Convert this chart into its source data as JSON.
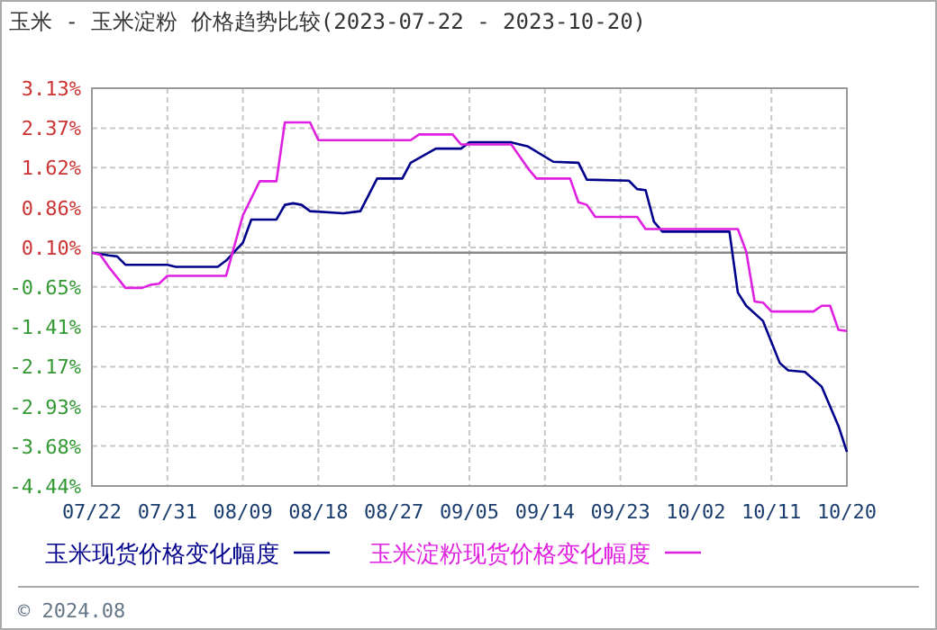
{
  "chart_data": {
    "type": "line",
    "title": "玉米 - 玉米淀粉 价格趋势比较(2023-07-22 - 2023-10-20)",
    "xlim": [
      "2023-07-22",
      "2023-10-20"
    ],
    "xticks": [
      {
        "value": "2023-07-22",
        "label": "07/22"
      },
      {
        "value": "2023-07-31",
        "label": "07/31"
      },
      {
        "value": "2023-08-09",
        "label": "08/09"
      },
      {
        "value": "2023-08-18",
        "label": "08/18"
      },
      {
        "value": "2023-08-27",
        "label": "08/27"
      },
      {
        "value": "2023-09-05",
        "label": "09/05"
      },
      {
        "value": "2023-09-14",
        "label": "09/14"
      },
      {
        "value": "2023-09-23",
        "label": "09/23"
      },
      {
        "value": "2023-10-02",
        "label": "10/02"
      },
      {
        "value": "2023-10-11",
        "label": "10/11"
      },
      {
        "value": "2023-10-20",
        "label": "10/20"
      }
    ],
    "ylim": [
      -4.44,
      3.13
    ],
    "yticks": [
      {
        "value": 3.13,
        "label": "3.13%"
      },
      {
        "value": 2.37,
        "label": "2.37%"
      },
      {
        "value": 1.62,
        "label": "1.62%"
      },
      {
        "value": 0.86,
        "label": "0.86%"
      },
      {
        "value": 0.1,
        "label": "0.10%"
      },
      {
        "value": -0.65,
        "label": "-0.65%"
      },
      {
        "value": -1.41,
        "label": "-1.41%"
      },
      {
        "value": -2.17,
        "label": "-2.17%"
      },
      {
        "value": -2.93,
        "label": "-2.93%"
      },
      {
        "value": -3.68,
        "label": "-3.68%"
      },
      {
        "value": -4.44,
        "label": "-4.44%"
      }
    ],
    "grid": true,
    "legend": "bottom",
    "ref_lines": [
      {
        "axis": "y",
        "value": 0,
        "color": "#888888"
      }
    ],
    "annotations": [
      "© 2024.08"
    ],
    "series": [
      {
        "name": "玉米现货价格变化幅度",
        "color": "#00008b",
        "x": [
          "2023-07-22",
          "2023-07-24",
          "2023-07-25",
          "2023-07-26",
          "2023-07-31",
          "2023-08-01",
          "2023-08-06",
          "2023-08-07",
          "2023-08-09",
          "2023-08-10",
          "2023-08-13",
          "2023-08-14",
          "2023-08-15",
          "2023-08-16",
          "2023-08-17",
          "2023-08-21",
          "2023-08-23",
          "2023-08-25",
          "2023-08-28",
          "2023-08-29",
          "2023-09-01",
          "2023-09-04",
          "2023-09-05",
          "2023-09-10",
          "2023-09-12",
          "2023-09-15",
          "2023-09-18",
          "2023-09-19",
          "2023-09-24",
          "2023-09-25",
          "2023-09-26",
          "2023-09-27",
          "2023-09-28",
          "2023-10-06",
          "2023-10-07",
          "2023-10-08",
          "2023-10-10",
          "2023-10-12",
          "2023-10-13",
          "2023-10-15",
          "2023-10-17",
          "2023-10-19",
          "2023-10-20"
        ],
        "values": [
          0,
          -0.05,
          -0.07,
          -0.23,
          -0.23,
          -0.27,
          -0.27,
          -0.15,
          0.19,
          0.63,
          0.63,
          0.91,
          0.94,
          0.91,
          0.79,
          0.75,
          0.79,
          1.41,
          1.41,
          1.71,
          1.98,
          1.98,
          2.1,
          2.1,
          2.02,
          1.73,
          1.71,
          1.39,
          1.37,
          1.21,
          1.19,
          0.59,
          0.4,
          0.4,
          -0.76,
          -1.01,
          -1.3,
          -2.1,
          -2.24,
          -2.27,
          -2.55,
          -3.3,
          -3.79
        ]
      },
      {
        "name": "玉米淀粉现货价格变化幅度",
        "color": "#e020e0",
        "x": [
          "2023-07-22",
          "2023-07-23",
          "2023-07-24",
          "2023-07-26",
          "2023-07-28",
          "2023-07-29",
          "2023-07-30",
          "2023-07-31",
          "2023-08-07",
          "2023-08-08",
          "2023-08-09",
          "2023-08-11",
          "2023-08-13",
          "2023-08-14",
          "2023-08-17",
          "2023-08-18",
          "2023-08-29",
          "2023-08-30",
          "2023-09-03",
          "2023-09-04",
          "2023-09-10",
          "2023-09-12",
          "2023-09-13",
          "2023-09-17",
          "2023-09-18",
          "2023-09-19",
          "2023-09-20",
          "2023-09-25",
          "2023-09-26",
          "2023-10-07",
          "2023-10-08",
          "2023-10-09",
          "2023-10-10",
          "2023-10-11",
          "2023-10-16",
          "2023-10-17",
          "2023-10-18",
          "2023-10-19",
          "2023-10-20"
        ],
        "values": [
          0,
          -0.04,
          -0.27,
          -0.67,
          -0.67,
          -0.61,
          -0.59,
          -0.44,
          -0.44,
          0.14,
          0.71,
          1.36,
          1.36,
          2.48,
          2.48,
          2.14,
          2.14,
          2.25,
          2.25,
          2.06,
          2.06,
          1.6,
          1.41,
          1.41,
          0.96,
          0.91,
          0.68,
          0.68,
          0.45,
          0.45,
          0.02,
          -0.93,
          -0.95,
          -1.12,
          -1.12,
          -1.01,
          -1.01,
          -1.47,
          -1.49
        ]
      }
    ]
  }
}
